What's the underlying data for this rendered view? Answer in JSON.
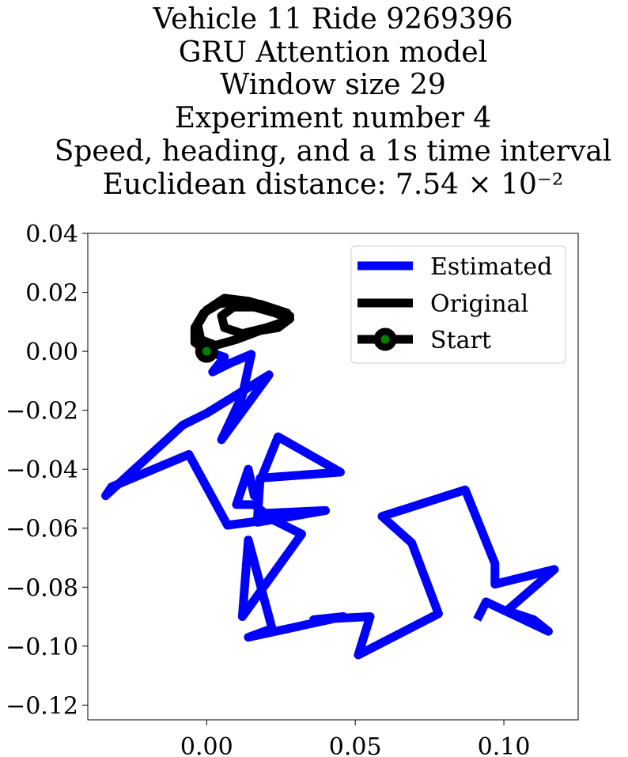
{
  "chart_data": {
    "type": "line",
    "title_lines": [
      "Vehicle 11 Ride 9269396",
      "GRU Attention model",
      "Window size 29",
      "Experiment number 4",
      "Speed, heading, and a 1s time interval",
      "Euclidean distance: 7.54 × 10⁻²"
    ],
    "xlabel": "",
    "ylabel": "",
    "xlim": [
      -0.04,
      0.125
    ],
    "ylim": [
      -0.125,
      0.04
    ],
    "grid": false,
    "legend_position": "top-right",
    "x_ticks": [
      {
        "value": 0.0,
        "label": "0.00"
      },
      {
        "value": 0.05,
        "label": "0.05"
      },
      {
        "value": 0.1,
        "label": "0.10"
      }
    ],
    "y_ticks": [
      {
        "value": 0.04,
        "label": "0.04"
      },
      {
        "value": 0.02,
        "label": "0.02"
      },
      {
        "value": 0.0,
        "label": "0.00"
      },
      {
        "value": -0.02,
        "label": "−0.02"
      },
      {
        "value": -0.04,
        "label": "−0.04"
      },
      {
        "value": -0.06,
        "label": "−0.06"
      },
      {
        "value": -0.08,
        "label": "−0.08"
      },
      {
        "value": -0.1,
        "label": "−0.10"
      },
      {
        "value": -0.12,
        "label": "−0.12"
      }
    ],
    "series": [
      {
        "name": "Estimated",
        "color": "#0000ff",
        "points": [
          [
            0.0,
            0.0
          ],
          [
            0.006,
            -0.002
          ],
          [
            0.002,
            -0.007
          ],
          [
            0.008,
            -0.004
          ],
          [
            0.015,
            -0.001
          ],
          [
            0.012,
            -0.015
          ],
          [
            0.005,
            -0.03
          ],
          [
            0.021,
            -0.008
          ],
          [
            0.0,
            -0.021
          ],
          [
            -0.008,
            -0.025
          ],
          [
            -0.034,
            -0.049
          ],
          [
            -0.032,
            -0.046
          ],
          [
            -0.006,
            -0.035
          ],
          [
            0.007,
            -0.059
          ],
          [
            0.022,
            -0.057
          ],
          [
            0.016,
            -0.052
          ],
          [
            0.01,
            -0.052
          ],
          [
            0.014,
            -0.04
          ],
          [
            0.016,
            -0.049
          ],
          [
            0.024,
            -0.029
          ],
          [
            0.045,
            -0.041
          ],
          [
            0.018,
            -0.043
          ],
          [
            0.017,
            -0.058
          ],
          [
            0.04,
            -0.054
          ],
          [
            0.018,
            -0.055
          ],
          [
            0.032,
            -0.062
          ],
          [
            0.012,
            -0.09
          ],
          [
            0.014,
            -0.064
          ],
          [
            0.022,
            -0.094
          ],
          [
            0.014,
            -0.097
          ],
          [
            0.046,
            -0.09
          ],
          [
            0.036,
            -0.091
          ],
          [
            0.055,
            -0.09
          ],
          [
            0.051,
            -0.103
          ],
          [
            0.078,
            -0.089
          ],
          [
            0.069,
            -0.065
          ],
          [
            0.059,
            -0.056
          ],
          [
            0.087,
            -0.047
          ],
          [
            0.097,
            -0.072
          ],
          [
            0.097,
            -0.079
          ],
          [
            0.117,
            -0.074
          ],
          [
            0.101,
            -0.088
          ],
          [
            0.11,
            -0.091
          ],
          [
            0.115,
            -0.095
          ],
          [
            0.094,
            -0.085
          ],
          [
            0.091,
            -0.091
          ]
        ]
      },
      {
        "name": "Original",
        "color": "#000000",
        "points": [
          [
            0.0,
            0.0
          ],
          [
            -0.004,
            0.003
          ],
          [
            -0.004,
            0.008
          ],
          [
            -0.001,
            0.013
          ],
          [
            0.004,
            0.016
          ],
          [
            0.01,
            0.017
          ],
          [
            0.018,
            0.016
          ],
          [
            0.024,
            0.014
          ],
          [
            0.028,
            0.012
          ],
          [
            0.025,
            0.009
          ],
          [
            0.018,
            0.007
          ],
          [
            0.01,
            0.004
          ],
          [
            0.003,
            0.002
          ],
          [
            -0.002,
            0.004
          ],
          [
            -0.003,
            0.009
          ],
          [
            0.0,
            0.014
          ],
          [
            0.006,
            0.018
          ],
          [
            0.014,
            0.017
          ],
          [
            0.021,
            0.015
          ],
          [
            0.027,
            0.013
          ],
          [
            0.026,
            0.01
          ],
          [
            0.02,
            0.008
          ],
          [
            0.012,
            0.006
          ],
          [
            0.006,
            0.008
          ],
          [
            0.005,
            0.012
          ],
          [
            0.009,
            0.015
          ],
          [
            0.016,
            0.015
          ],
          [
            0.023,
            0.013
          ],
          [
            0.028,
            0.011
          ],
          [
            0.024,
            0.008
          ],
          [
            0.018,
            0.007
          ],
          [
            0.018,
            0.008
          ]
        ]
      }
    ],
    "start_marker": {
      "name": "Start",
      "x": 0.0,
      "y": 0.0,
      "fill": "#008000",
      "edge": "#000000"
    }
  }
}
